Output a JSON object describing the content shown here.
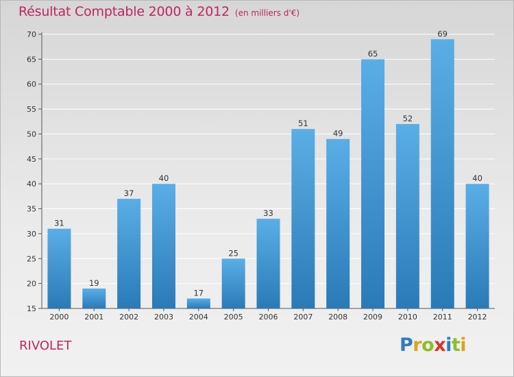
{
  "header": {
    "title": "Résultat Comptable 2000 à 2012",
    "subtitle": "(en milliers d'€)"
  },
  "footer": {
    "commune": "RIVOLET",
    "brand": "Proxiti",
    "brand_letters": [
      "P",
      "r",
      "o",
      "x",
      "i",
      "t",
      "i"
    ],
    "brand_colors": [
      "#2b7cc6",
      "#e0a11a",
      "#8cbf26",
      "#d9342b",
      "#2b7cc6",
      "#8cbf26",
      "#e0a11a"
    ]
  },
  "colors": {
    "bar_top": "#5aaee6",
    "bar_bottom": "#2a7ab8",
    "accent": "#c0245e"
  },
  "chart_data": {
    "type": "bar",
    "title": "Résultat Comptable 2000 à 2012",
    "subtitle": "(en milliers d'€)",
    "xlabel": "",
    "ylabel": "",
    "categories": [
      "2000",
      "2001",
      "2002",
      "2003",
      "2004",
      "2005",
      "2006",
      "2007",
      "2008",
      "2009",
      "2010",
      "2011",
      "2012"
    ],
    "values": [
      31,
      19,
      37,
      40,
      17,
      25,
      33,
      51,
      49,
      65,
      52,
      69,
      40
    ],
    "ylim": [
      15,
      70
    ],
    "yticks": [
      15,
      20,
      25,
      30,
      35,
      40,
      45,
      50,
      55,
      60,
      65,
      70
    ],
    "grid": true
  }
}
